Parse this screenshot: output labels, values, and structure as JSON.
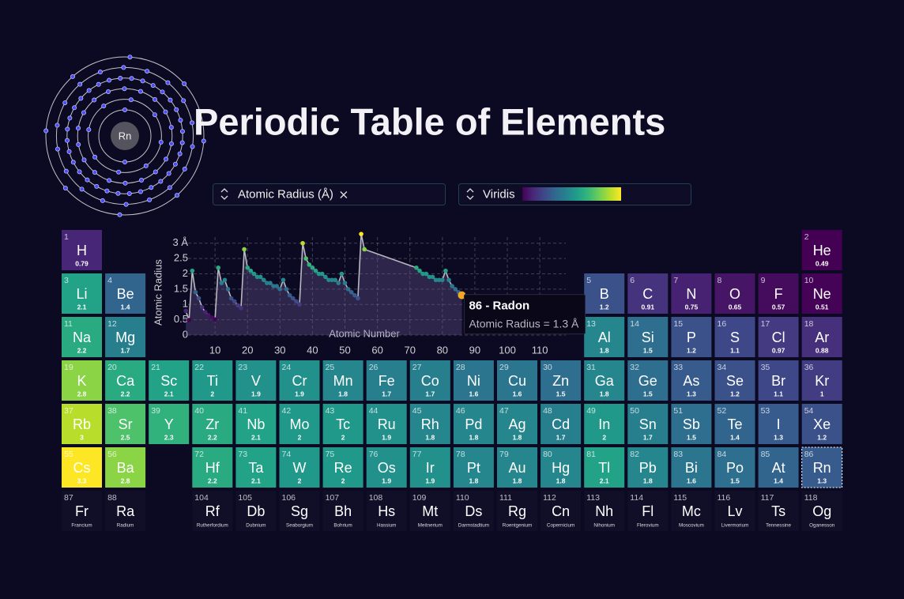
{
  "title": "Periodic Table of Elements",
  "controls": {
    "property": "Atomic Radius (Å)",
    "colorscale": "Viridis"
  },
  "atom": {
    "symbol": "Rn",
    "shells": [
      2,
      8,
      18,
      32,
      18,
      8
    ]
  },
  "tooltip": {
    "title": "86 - Radon",
    "text": "Atomic Radius = 1.3 Å"
  },
  "chart_data": {
    "type": "scatter",
    "xlabel": "Atomic Number",
    "ylabel": "Atomic Radius",
    "xlim": [
      0,
      118
    ],
    "ylim": [
      0,
      3.2
    ],
    "xticks": [
      10,
      20,
      30,
      40,
      50,
      60,
      70,
      80,
      90,
      100,
      110
    ],
    "yticks": [
      0,
      0.5,
      1,
      1.5,
      2,
      2.5,
      {
        "value": 3,
        "label": "3 Å"
      }
    ],
    "grid": true
  },
  "elements": [
    {
      "number": 1,
      "symbol": "H",
      "value": 0.79
    },
    {
      "number": 2,
      "symbol": "He",
      "value": 0.49
    },
    {
      "number": 3,
      "symbol": "Li",
      "value": 2.1
    },
    {
      "number": 4,
      "symbol": "Be",
      "value": 1.4
    },
    {
      "number": 5,
      "symbol": "B",
      "value": 1.2
    },
    {
      "number": 6,
      "symbol": "C",
      "value": 0.91
    },
    {
      "number": 7,
      "symbol": "N",
      "value": 0.75
    },
    {
      "number": 8,
      "symbol": "O",
      "value": 0.65
    },
    {
      "number": 9,
      "symbol": "F",
      "value": 0.57
    },
    {
      "number": 10,
      "symbol": "Ne",
      "value": 0.51
    },
    {
      "number": 11,
      "symbol": "Na",
      "value": 2.2
    },
    {
      "number": 12,
      "symbol": "Mg",
      "value": 1.7
    },
    {
      "number": 13,
      "symbol": "Al",
      "value": 1.8
    },
    {
      "number": 14,
      "symbol": "Si",
      "value": 1.5
    },
    {
      "number": 15,
      "symbol": "P",
      "value": 1.2
    },
    {
      "number": 16,
      "symbol": "S",
      "value": 1.1
    },
    {
      "number": 17,
      "symbol": "Cl",
      "value": 0.97
    },
    {
      "number": 18,
      "symbol": "Ar",
      "value": 0.88
    },
    {
      "number": 19,
      "symbol": "K",
      "value": 2.8
    },
    {
      "number": 20,
      "symbol": "Ca",
      "value": 2.2
    },
    {
      "number": 21,
      "symbol": "Sc",
      "value": 2.1
    },
    {
      "number": 22,
      "symbol": "Ti",
      "value": 2
    },
    {
      "number": 23,
      "symbol": "V",
      "value": 1.9
    },
    {
      "number": 24,
      "symbol": "Cr",
      "value": 1.9
    },
    {
      "number": 25,
      "symbol": "Mn",
      "value": 1.8
    },
    {
      "number": 26,
      "symbol": "Fe",
      "value": 1.7
    },
    {
      "number": 27,
      "symbol": "Co",
      "value": 1.7
    },
    {
      "number": 28,
      "symbol": "Ni",
      "value": 1.6
    },
    {
      "number": 29,
      "symbol": "Cu",
      "value": 1.6
    },
    {
      "number": 30,
      "symbol": "Zn",
      "value": 1.5
    },
    {
      "number": 31,
      "symbol": "Ga",
      "value": 1.8
    },
    {
      "number": 32,
      "symbol": "Ge",
      "value": 1.5
    },
    {
      "number": 33,
      "symbol": "As",
      "value": 1.3
    },
    {
      "number": 34,
      "symbol": "Se",
      "value": 1.2
    },
    {
      "number": 35,
      "symbol": "Br",
      "value": 1.1
    },
    {
      "number": 36,
      "symbol": "Kr",
      "value": 1
    },
    {
      "number": 37,
      "symbol": "Rb",
      "value": 3
    },
    {
      "number": 38,
      "symbol": "Sr",
      "value": 2.5
    },
    {
      "number": 39,
      "symbol": "Y",
      "value": 2.3
    },
    {
      "number": 40,
      "symbol": "Zr",
      "value": 2.2
    },
    {
      "number": 41,
      "symbol": "Nb",
      "value": 2.1
    },
    {
      "number": 42,
      "symbol": "Mo",
      "value": 2
    },
    {
      "number": 43,
      "symbol": "Tc",
      "value": 2
    },
    {
      "number": 44,
      "symbol": "Ru",
      "value": 1.9
    },
    {
      "number": 45,
      "symbol": "Rh",
      "value": 1.8
    },
    {
      "number": 46,
      "symbol": "Pd",
      "value": 1.8
    },
    {
      "number": 47,
      "symbol": "Ag",
      "value": 1.8
    },
    {
      "number": 48,
      "symbol": "Cd",
      "value": 1.7
    },
    {
      "number": 49,
      "symbol": "In",
      "value": 2
    },
    {
      "number": 50,
      "symbol": "Sn",
      "value": 1.7
    },
    {
      "number": 51,
      "symbol": "Sb",
      "value": 1.5
    },
    {
      "number": 52,
      "symbol": "Te",
      "value": 1.4
    },
    {
      "number": 53,
      "symbol": "I",
      "value": 1.3
    },
    {
      "number": 54,
      "symbol": "Xe",
      "value": 1.2
    },
    {
      "number": 55,
      "symbol": "Cs",
      "value": 3.3
    },
    {
      "number": 56,
      "symbol": "Ba",
      "value": 2.8
    },
    {
      "number": 72,
      "symbol": "Hf",
      "value": 2.2
    },
    {
      "number": 73,
      "symbol": "Ta",
      "value": 2.1
    },
    {
      "number": 74,
      "symbol": "W",
      "value": 2
    },
    {
      "number": 75,
      "symbol": "Re",
      "value": 2
    },
    {
      "number": 76,
      "symbol": "Os",
      "value": 1.9
    },
    {
      "number": 77,
      "symbol": "Ir",
      "value": 1.9
    },
    {
      "number": 78,
      "symbol": "Pt",
      "value": 1.8
    },
    {
      "number": 79,
      "symbol": "Au",
      "value": 1.8
    },
    {
      "number": 80,
      "symbol": "Hg",
      "value": 1.8
    },
    {
      "number": 81,
      "symbol": "Tl",
      "value": 2.1
    },
    {
      "number": 82,
      "symbol": "Pb",
      "value": 1.8
    },
    {
      "number": 83,
      "symbol": "Bi",
      "value": 1.6
    },
    {
      "number": 84,
      "symbol": "Po",
      "value": 1.5
    },
    {
      "number": 85,
      "symbol": "At",
      "value": 1.4
    },
    {
      "number": 86,
      "symbol": "Rn",
      "value": 1.3
    },
    {
      "number": 87,
      "symbol": "Fr",
      "name": "Francium"
    },
    {
      "number": 88,
      "symbol": "Ra",
      "name": "Radium"
    },
    {
      "number": 104,
      "symbol": "Rf",
      "name": "Rutherfordium"
    },
    {
      "number": 105,
      "symbol": "Db",
      "name": "Dubnium"
    },
    {
      "number": 106,
      "symbol": "Sg",
      "name": "Seaborgium"
    },
    {
      "number": 107,
      "symbol": "Bh",
      "name": "Bohrium"
    },
    {
      "number": 108,
      "symbol": "Hs",
      "name": "Hassium"
    },
    {
      "number": 109,
      "symbol": "Mt",
      "name": "Meitnerium"
    },
    {
      "number": 110,
      "symbol": "Ds",
      "name": "Darmstadtium"
    },
    {
      "number": 111,
      "symbol": "Rg",
      "name": "Roentgenium"
    },
    {
      "number": 112,
      "symbol": "Cn",
      "name": "Copernicium"
    },
    {
      "number": 113,
      "symbol": "Nh",
      "name": "Nihonium"
    },
    {
      "number": 114,
      "symbol": "Fl",
      "name": "Flerovium"
    },
    {
      "number": 115,
      "symbol": "Mc",
      "name": "Moscovium"
    },
    {
      "number": 116,
      "symbol": "Lv",
      "name": "Livermorium"
    },
    {
      "number": 117,
      "symbol": "Ts",
      "name": "Tennessine"
    },
    {
      "number": 118,
      "symbol": "Og",
      "name": "Oganesson"
    }
  ]
}
